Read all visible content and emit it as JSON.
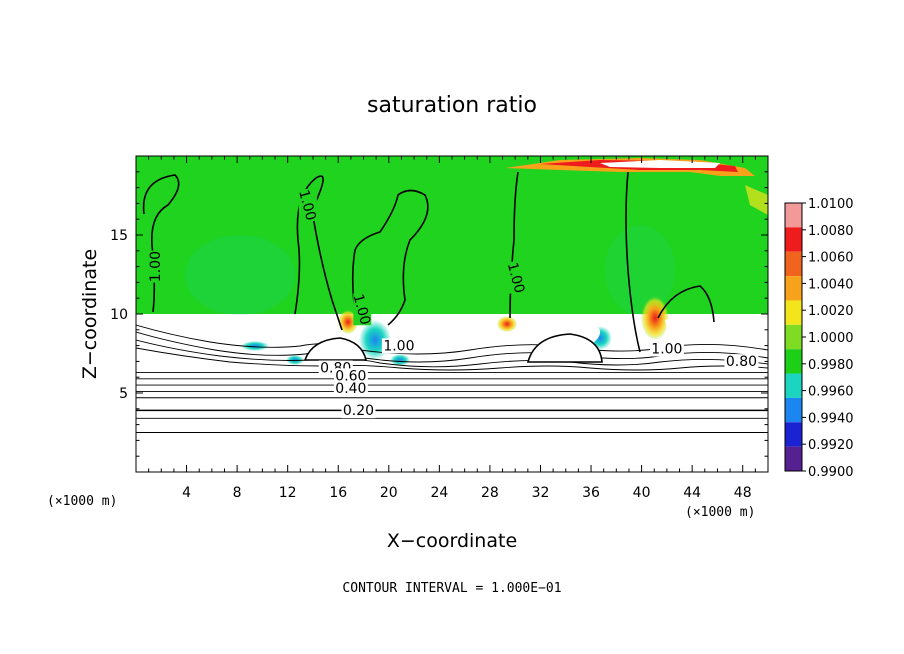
{
  "chart_data": {
    "type": "heatmap",
    "title": "saturation ratio",
    "xlabel": "X−coordinate",
    "ylabel": "Z−coordinate",
    "x_unit_left": "(×1000 m)",
    "x_unit_right": "(×1000 m)",
    "xlim": [
      0,
      50
    ],
    "ylim": [
      0,
      20
    ],
    "x_ticks": [
      4,
      8,
      12,
      16,
      20,
      24,
      28,
      32,
      36,
      40,
      44,
      48
    ],
    "y_ticks": [
      5,
      10,
      15
    ],
    "footer": "CONTOUR INTERVAL = 1.000E−01",
    "colorbar": {
      "levels": [
        "1.0100",
        "1.0080",
        "1.0060",
        "1.0040",
        "1.0020",
        "1.0000",
        "0.9980",
        "0.9960",
        "0.9940",
        "0.9920",
        "0.9900"
      ],
      "colors": [
        "#f29a9a",
        "#ee1c1c",
        "#f0641e",
        "#f7a21b",
        "#f2e51b",
        "#7fdc22",
        "#1ecf18",
        "#1bd5c0",
        "#1b86f0",
        "#1b22d2",
        "#55208f"
      ]
    },
    "field_colors": {
      "background": "#1fd31f",
      "lower": "#ffffff"
    },
    "contour_labels": [
      {
        "text": "1.00",
        "x": 1.5,
        "z": 13.0
      },
      {
        "text": "1.00",
        "x": 13.6,
        "z": 16.9
      },
      {
        "text": "1.00",
        "x": 17.9,
        "z": 10.3
      },
      {
        "text": "1.00",
        "x": 30.1,
        "z": 12.3
      },
      {
        "text": "1.00",
        "x": 20.8,
        "z": 7.7
      },
      {
        "text": "1.00",
        "x": 42.0,
        "z": 7.5
      },
      {
        "text": "0.80",
        "x": 15.8,
        "z": 6.3
      },
      {
        "text": "0.80",
        "x": 47.9,
        "z": 6.7
      },
      {
        "text": "0.60",
        "x": 17.0,
        "z": 5.8
      },
      {
        "text": "0.40",
        "x": 17.0,
        "z": 5.0
      },
      {
        "text": "0.20",
        "x": 17.6,
        "z": 3.6
      }
    ],
    "flat_contours": [
      6.3,
      5.9,
      5.5,
      5.1,
      4.7,
      3.9,
      3.4,
      2.5
    ],
    "moist_boundary_z": 10.0
  }
}
